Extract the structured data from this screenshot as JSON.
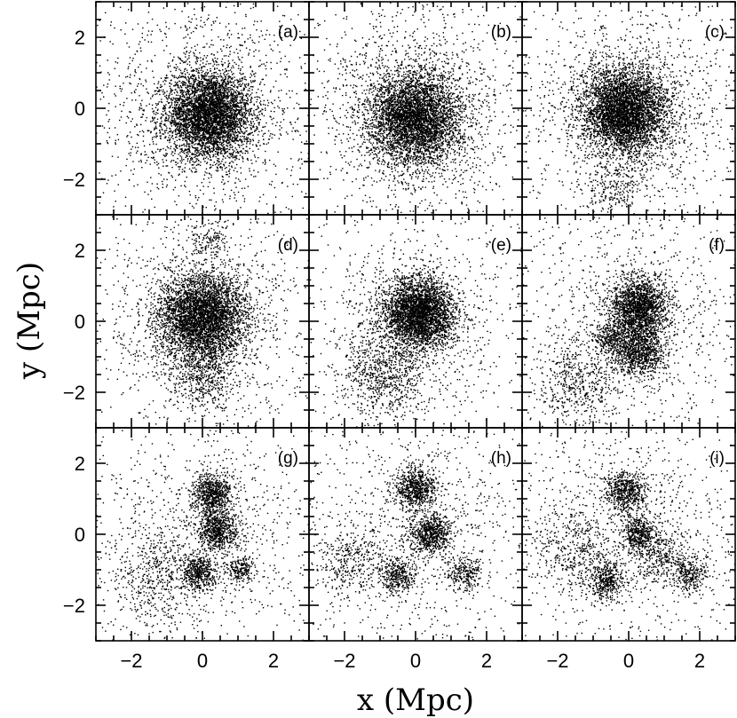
{
  "chart_data": {
    "type": "scatter",
    "xlabel": "x (Mpc)",
    "ylabel": "y (Mpc)",
    "xlim": [
      -3,
      3
    ],
    "ylim": [
      -3,
      3
    ],
    "x_ticks": [
      "−2",
      "0",
      "2"
    ],
    "y_ticks": [
      "−2",
      "0",
      "2"
    ],
    "grid": false,
    "panels": [
      {
        "label": "(a)",
        "components": [
          {
            "x": 0.2,
            "y": -0.2,
            "sigma": 0.6,
            "n": 4200
          },
          {
            "x": 0,
            "y": 0,
            "sigma": 1.6,
            "n": 1600
          }
        ]
      },
      {
        "label": "(b)",
        "components": [
          {
            "x": 0,
            "y": -0.3,
            "sigma": 0.65,
            "n": 4200
          },
          {
            "x": 0,
            "y": 0,
            "sigma": 1.6,
            "n": 1600
          }
        ]
      },
      {
        "label": "(c)",
        "components": [
          {
            "x": -0.1,
            "y": -0.1,
            "sigma": 0.6,
            "n": 4200
          },
          {
            "x": -0.5,
            "y": -2.3,
            "sigma": 0.4,
            "n": 200
          },
          {
            "x": 0,
            "y": 0,
            "sigma": 1.6,
            "n": 1500
          }
        ]
      },
      {
        "label": "(d)",
        "components": [
          {
            "x": 0,
            "y": 0.1,
            "sigma": 0.6,
            "n": 4000
          },
          {
            "x": 0,
            "y": -1.5,
            "sigma": 0.5,
            "n": 500
          },
          {
            "x": 0.2,
            "y": 2.3,
            "sigma": 0.3,
            "n": 150
          },
          {
            "x": 0,
            "y": 0,
            "sigma": 1.6,
            "n": 1300
          }
        ]
      },
      {
        "label": "(e)",
        "components": [
          {
            "x": 0.1,
            "y": 0.2,
            "sigma": 0.5,
            "n": 3400
          },
          {
            "x": -0.9,
            "y": -1.5,
            "sigma": 0.6,
            "n": 700
          },
          {
            "x": 0,
            "y": 0,
            "sigma": 1.6,
            "n": 1000
          }
        ]
      },
      {
        "label": "(f)",
        "components": [
          {
            "x": 0.3,
            "y": 0.4,
            "sigma": 0.4,
            "n": 1800
          },
          {
            "x": 0.3,
            "y": -0.8,
            "sigma": 0.35,
            "n": 1000
          },
          {
            "x": -0.5,
            "y": -0.5,
            "sigma": 0.25,
            "n": 300
          },
          {
            "x": -1.4,
            "y": -1.8,
            "sigma": 0.6,
            "n": 500
          },
          {
            "x": 0,
            "y": 0,
            "sigma": 1.7,
            "n": 1100
          }
        ]
      },
      {
        "label": "(g)",
        "components": [
          {
            "x": 0.3,
            "y": 1.1,
            "sigma": 0.28,
            "n": 700
          },
          {
            "x": 0.4,
            "y": 0.1,
            "sigma": 0.28,
            "n": 700
          },
          {
            "x": -0.1,
            "y": -1.1,
            "sigma": 0.25,
            "n": 450
          },
          {
            "x": 1.1,
            "y": -1,
            "sigma": 0.2,
            "n": 200
          },
          {
            "x": -1.3,
            "y": -1.3,
            "sigma": 0.7,
            "n": 500
          },
          {
            "x": 0,
            "y": 0,
            "sigma": 1.8,
            "n": 1100
          }
        ]
      },
      {
        "label": "(h)",
        "components": [
          {
            "x": 0,
            "y": 1.3,
            "sigma": 0.28,
            "n": 700
          },
          {
            "x": 0.4,
            "y": 0,
            "sigma": 0.28,
            "n": 700
          },
          {
            "x": -0.5,
            "y": -1.2,
            "sigma": 0.25,
            "n": 350
          },
          {
            "x": 1.4,
            "y": -1.1,
            "sigma": 0.25,
            "n": 250
          },
          {
            "x": -1.8,
            "y": -0.8,
            "sigma": 0.5,
            "n": 350
          },
          {
            "x": 0,
            "y": 0,
            "sigma": 1.8,
            "n": 1100
          }
        ]
      },
      {
        "label": "(i)",
        "components": [
          {
            "x": -0.1,
            "y": 1.2,
            "sigma": 0.28,
            "n": 600
          },
          {
            "x": 0.3,
            "y": 0,
            "sigma": 0.25,
            "n": 450
          },
          {
            "x": -0.6,
            "y": -1.3,
            "sigma": 0.25,
            "n": 400
          },
          {
            "x": 1.7,
            "y": -1.1,
            "sigma": 0.25,
            "n": 300
          },
          {
            "x": 0.8,
            "y": -0.6,
            "sigma": 0.4,
            "n": 300
          },
          {
            "x": -1.5,
            "y": -0.5,
            "sigma": 0.6,
            "n": 400
          },
          {
            "x": 0,
            "y": 0,
            "sigma": 1.8,
            "n": 1100
          }
        ]
      }
    ]
  }
}
